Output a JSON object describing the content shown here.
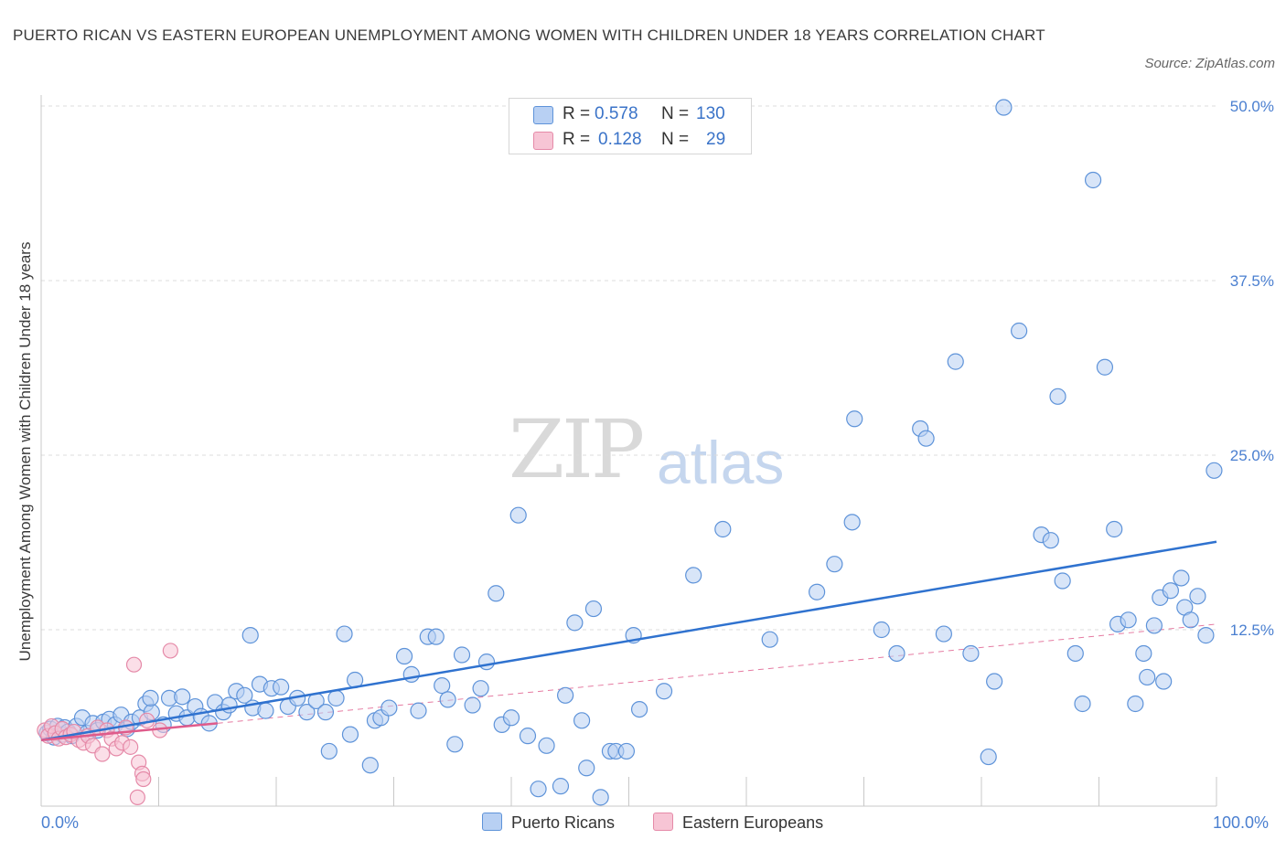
{
  "header": {
    "title": "PUERTO RICAN VS EASTERN EUROPEAN UNEMPLOYMENT AMONG WOMEN WITH CHILDREN UNDER 18 YEARS CORRELATION CHART",
    "source": "Source: ZipAtlas.com"
  },
  "watermark": {
    "zip": "ZIP",
    "atlas": "atlas"
  },
  "legend": {
    "rows": [
      {
        "r_label": "R =",
        "r_value": "0.578",
        "n_label": "N =",
        "n_value": "130"
      },
      {
        "r_label": "R =",
        "r_value": "0.128",
        "n_label": "N =",
        "n_value": "29"
      }
    ]
  },
  "bottom_legend": {
    "series1": "Puerto Ricans",
    "series2": "Eastern Europeans"
  },
  "axis": {
    "x_min_label": "0.0%",
    "x_max_label": "100.0%"
  },
  "colors": {
    "blue_fill": "#b8d0f3",
    "blue_stroke": "#5e93d9",
    "blue_line": "#2f72cf",
    "pink_fill": "#f7c5d5",
    "pink_stroke": "#e58aa8",
    "pink_line": "#df5b8b"
  },
  "chart_data": {
    "type": "scatter",
    "title": "PUERTO RICAN VS EASTERN EUROPEAN UNEMPLOYMENT AMONG WOMEN WITH CHILDREN UNDER 18 YEARS CORRELATION CHART",
    "xlabel": "",
    "ylabel": "Unemployment Among Women with Children Under 18 years",
    "xlim": [
      0,
      100
    ],
    "ylim": [
      0,
      50
    ],
    "y_ticks": [
      {
        "value": 12.5,
        "label": "12.5%"
      },
      {
        "value": 25.0,
        "label": "25.0%"
      },
      {
        "value": 37.5,
        "label": "37.5%"
      },
      {
        "value": 50.0,
        "label": "50.0%"
      }
    ],
    "grid": true,
    "legend_position": "top-center",
    "series": [
      {
        "name": "Puerto Ricans",
        "R": 0.578,
        "N": 130,
        "trend": {
          "x": [
            0,
            100
          ],
          "y": [
            4.6,
            18.8
          ]
        },
        "points": [
          [
            0.5,
            5.1
          ],
          [
            0.8,
            5.4
          ],
          [
            1.1,
            4.8
          ],
          [
            1.4,
            5.6
          ],
          [
            1.8,
            5.0
          ],
          [
            2.0,
            5.5
          ],
          [
            2.3,
            5.2
          ],
          [
            2.6,
            4.9
          ],
          [
            3.0,
            5.6
          ],
          [
            3.5,
            6.2
          ],
          [
            3.9,
            5.1
          ],
          [
            4.4,
            5.8
          ],
          [
            4.8,
            5.3
          ],
          [
            5.3,
            5.9
          ],
          [
            5.8,
            6.1
          ],
          [
            6.3,
            5.7
          ],
          [
            6.8,
            6.4
          ],
          [
            7.3,
            5.4
          ],
          [
            7.7,
            5.9
          ],
          [
            8.4,
            6.2
          ],
          [
            8.9,
            7.2
          ],
          [
            9.4,
            6.6
          ],
          [
            9.3,
            7.6
          ],
          [
            10.4,
            5.7
          ],
          [
            10.9,
            7.6
          ],
          [
            11.5,
            6.5
          ],
          [
            12.0,
            7.7
          ],
          [
            12.4,
            6.2
          ],
          [
            13.1,
            7.0
          ],
          [
            13.6,
            6.3
          ],
          [
            14.3,
            5.8
          ],
          [
            14.8,
            7.3
          ],
          [
            15.5,
            6.6
          ],
          [
            16.0,
            7.1
          ],
          [
            16.6,
            8.1
          ],
          [
            17.3,
            7.8
          ],
          [
            18.0,
            6.9
          ],
          [
            18.6,
            8.6
          ],
          [
            19.1,
            6.7
          ],
          [
            19.6,
            8.3
          ],
          [
            20.4,
            8.4
          ],
          [
            21.0,
            7.0
          ],
          [
            21.8,
            7.6
          ],
          [
            22.6,
            6.6
          ],
          [
            23.4,
            7.4
          ],
          [
            24.2,
            6.6
          ],
          [
            25.1,
            7.6
          ],
          [
            25.8,
            12.2
          ],
          [
            26.3,
            5.0
          ],
          [
            26.7,
            8.9
          ],
          [
            17.8,
            12.1
          ],
          [
            28.4,
            6.0
          ],
          [
            28.9,
            6.2
          ],
          [
            29.6,
            6.9
          ],
          [
            30.9,
            10.6
          ],
          [
            31.5,
            9.3
          ],
          [
            32.1,
            6.7
          ],
          [
            32.9,
            12.0
          ],
          [
            33.6,
            12.0
          ],
          [
            34.1,
            8.5
          ],
          [
            34.6,
            7.5
          ],
          [
            35.2,
            4.3
          ],
          [
            35.8,
            10.7
          ],
          [
            36.7,
            7.1
          ],
          [
            37.4,
            8.3
          ],
          [
            37.9,
            10.2
          ],
          [
            38.7,
            15.1
          ],
          [
            39.2,
            5.7
          ],
          [
            40.0,
            6.2
          ],
          [
            40.6,
            20.7
          ],
          [
            41.4,
            4.9
          ],
          [
            42.3,
            1.1
          ],
          [
            43.0,
            4.2
          ],
          [
            44.2,
            1.3
          ],
          [
            44.6,
            7.8
          ],
          [
            45.4,
            13.0
          ],
          [
            46.0,
            6.0
          ],
          [
            46.4,
            2.6
          ],
          [
            47.0,
            14.0
          ],
          [
            47.6,
            0.5
          ],
          [
            48.4,
            3.8
          ],
          [
            48.9,
            3.8
          ],
          [
            49.8,
            3.8
          ],
          [
            50.4,
            12.1
          ],
          [
            50.9,
            6.8
          ],
          [
            53.0,
            8.1
          ],
          [
            55.5,
            16.4
          ],
          [
            24.5,
            3.8
          ],
          [
            28.0,
            2.8
          ],
          [
            58.0,
            19.7
          ],
          [
            62.0,
            11.8
          ],
          [
            66.0,
            15.2
          ],
          [
            67.5,
            17.2
          ],
          [
            69.0,
            20.2
          ],
          [
            69.2,
            27.6
          ],
          [
            71.5,
            12.5
          ],
          [
            72.8,
            10.8
          ],
          [
            74.8,
            26.9
          ],
          [
            75.3,
            26.2
          ],
          [
            76.8,
            12.2
          ],
          [
            77.8,
            31.7
          ],
          [
            79.1,
            10.8
          ],
          [
            80.6,
            3.4
          ],
          [
            81.1,
            8.8
          ],
          [
            81.9,
            49.9
          ],
          [
            83.2,
            33.9
          ],
          [
            85.1,
            19.3
          ],
          [
            85.9,
            18.9
          ],
          [
            86.5,
            29.2
          ],
          [
            86.9,
            16.0
          ],
          [
            88.0,
            10.8
          ],
          [
            88.6,
            7.2
          ],
          [
            89.5,
            44.7
          ],
          [
            90.5,
            31.3
          ],
          [
            91.3,
            19.7
          ],
          [
            91.6,
            12.9
          ],
          [
            92.5,
            13.2
          ],
          [
            93.1,
            7.2
          ],
          [
            93.8,
            10.8
          ],
          [
            94.1,
            9.1
          ],
          [
            94.7,
            12.8
          ],
          [
            95.2,
            14.8
          ],
          [
            95.5,
            8.8
          ],
          [
            96.1,
            15.3
          ],
          [
            97.0,
            16.2
          ],
          [
            97.3,
            14.1
          ],
          [
            97.8,
            13.2
          ],
          [
            98.4,
            14.9
          ],
          [
            99.1,
            12.1
          ],
          [
            99.8,
            23.9
          ]
        ]
      },
      {
        "name": "Eastern Europeans",
        "R": 0.128,
        "N": 29,
        "trend_solid": {
          "x": [
            0,
            15
          ],
          "y": [
            4.6,
            5.8
          ]
        },
        "trend_dashed": {
          "x": [
            15,
            100
          ],
          "y": [
            5.8,
            12.9
          ]
        },
        "points": [
          [
            0.3,
            5.3
          ],
          [
            0.6,
            4.9
          ],
          [
            0.9,
            5.6
          ],
          [
            1.2,
            5.1
          ],
          [
            1.5,
            4.7
          ],
          [
            1.8,
            5.4
          ],
          [
            2.1,
            4.8
          ],
          [
            2.5,
            5.0
          ],
          [
            2.8,
            5.2
          ],
          [
            3.2,
            4.6
          ],
          [
            3.6,
            4.4
          ],
          [
            4.0,
            4.9
          ],
          [
            4.4,
            4.2
          ],
          [
            4.8,
            5.5
          ],
          [
            5.2,
            3.6
          ],
          [
            5.6,
            5.3
          ],
          [
            6.0,
            4.7
          ],
          [
            6.4,
            4.0
          ],
          [
            6.9,
            4.4
          ],
          [
            7.2,
            5.5
          ],
          [
            7.6,
            4.1
          ],
          [
            7.9,
            10.0
          ],
          [
            8.3,
            3.0
          ],
          [
            8.6,
            2.2
          ],
          [
            8.2,
            0.5
          ],
          [
            8.7,
            1.8
          ],
          [
            10.1,
            5.3
          ],
          [
            9.0,
            6.0
          ],
          [
            11.0,
            11.0
          ]
        ]
      }
    ]
  }
}
